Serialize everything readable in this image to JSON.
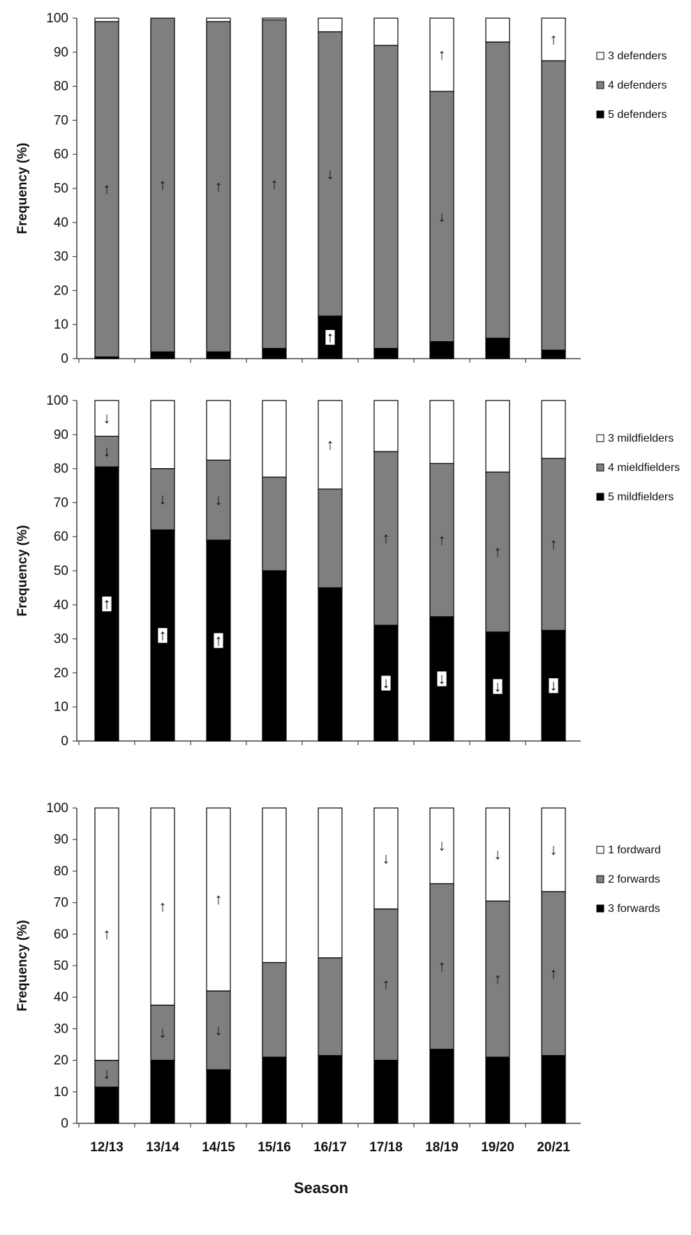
{
  "chart_data": [
    {
      "type": "bar",
      "stacked": true,
      "ylabel": "Frequency (%)",
      "ylim": [
        0,
        100
      ],
      "yticks": [
        0,
        10,
        20,
        30,
        40,
        50,
        60,
        70,
        80,
        90,
        100
      ],
      "categories": [
        "12/13",
        "13/14",
        "14/15",
        "15/16",
        "16/17",
        "17/18",
        "18/19",
        "19/20",
        "20/21"
      ],
      "legend_position": "right",
      "series": [
        {
          "name": "5 defenders",
          "color": "#000000",
          "values": [
            0.5,
            2,
            2,
            3,
            12.5,
            3,
            5,
            6,
            2.5
          ],
          "markers": [
            "",
            "",
            "",
            "",
            "up",
            "",
            "",
            "",
            ""
          ]
        },
        {
          "name": "4 defenders",
          "color": "#7f7f7f",
          "values": [
            98.5,
            98,
            97,
            96.5,
            83.5,
            89,
            73.5,
            87,
            85
          ],
          "markers": [
            "up",
            "up",
            "up",
            "up",
            "down",
            "",
            "down",
            "",
            ""
          ]
        },
        {
          "name": "3 defenders",
          "color": "#ffffff",
          "values": [
            1,
            0,
            1,
            0.5,
            4,
            8,
            21.5,
            7,
            12.5
          ],
          "markers": [
            "",
            "",
            "",
            "",
            "",
            "",
            "up",
            "",
            "up"
          ]
        }
      ]
    },
    {
      "type": "bar",
      "stacked": true,
      "ylabel": "Frequency (%)",
      "ylim": [
        0,
        100
      ],
      "yticks": [
        0,
        10,
        20,
        30,
        40,
        50,
        60,
        70,
        80,
        90,
        100
      ],
      "categories": [
        "12/13",
        "13/14",
        "14/15",
        "15/16",
        "16/17",
        "17/18",
        "18/19",
        "19/20",
        "20/21"
      ],
      "legend_position": "right",
      "series": [
        {
          "name": "5 mildfielders",
          "color": "#000000",
          "values": [
            80.5,
            62,
            59,
            50,
            45,
            34,
            36.5,
            32,
            32.5
          ],
          "markers": [
            "up",
            "up",
            "up",
            "",
            "",
            "down",
            "down",
            "down",
            "down"
          ]
        },
        {
          "name": "4 mieldfielders",
          "color": "#7f7f7f",
          "values": [
            9,
            18,
            23.5,
            27.5,
            29,
            51,
            45,
            47,
            50.5
          ],
          "markers": [
            "down",
            "down",
            "down",
            "",
            "",
            "up",
            "up",
            "up",
            "up"
          ]
        },
        {
          "name": "3 mildfielders",
          "color": "#ffffff",
          "values": [
            10.5,
            20,
            17.5,
            22.5,
            26,
            15,
            18.5,
            21,
            17
          ],
          "markers": [
            "down",
            "",
            "",
            "",
            "up",
            "",
            "",
            "",
            ""
          ]
        }
      ]
    },
    {
      "type": "bar",
      "stacked": true,
      "ylabel": "Frequency (%)",
      "ylim": [
        0,
        100
      ],
      "yticks": [
        0,
        10,
        20,
        30,
        40,
        50,
        60,
        70,
        80,
        90,
        100
      ],
      "categories": [
        "12/13",
        "13/14",
        "14/15",
        "15/16",
        "16/17",
        "17/18",
        "18/19",
        "19/20",
        "20/21"
      ],
      "legend_position": "right",
      "xlabel": "Season",
      "series": [
        {
          "name": "3 forwards",
          "color": "#000000",
          "values": [
            11.5,
            20,
            17,
            21,
            21.5,
            20,
            23.5,
            21,
            21.5
          ],
          "markers": [
            "",
            "",
            "",
            "",
            "",
            "",
            "",
            "",
            ""
          ]
        },
        {
          "name": "2 forwards",
          "color": "#7f7f7f",
          "values": [
            8.5,
            17.5,
            25,
            30,
            31,
            48,
            52.5,
            49.5,
            52
          ],
          "markers": [
            "down",
            "down",
            "down",
            "",
            "",
            "up",
            "up",
            "up",
            "up"
          ]
        },
        {
          "name": "1 fordward",
          "color": "#ffffff",
          "values": [
            80,
            62.5,
            58,
            49,
            47.5,
            32,
            24,
            29.5,
            26.5
          ],
          "markers": [
            "up",
            "up",
            "up",
            "",
            "",
            "down",
            "down",
            "down",
            "down"
          ]
        }
      ]
    }
  ]
}
